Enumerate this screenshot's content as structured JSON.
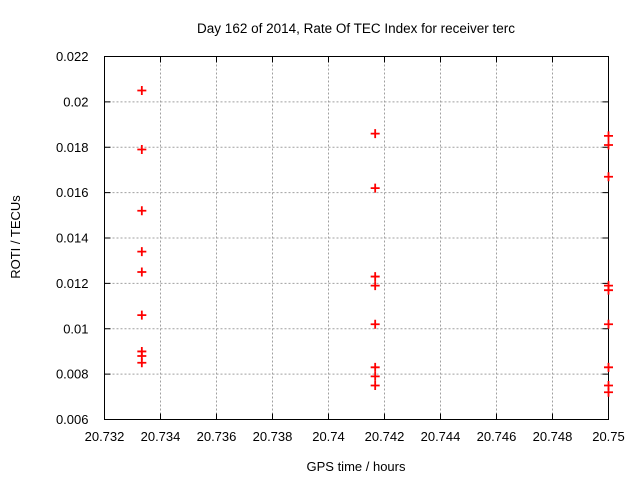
{
  "chart_data": {
    "type": "scatter",
    "title": "Day 162 of 2014, Rate Of TEC Index for receiver terc",
    "xlabel": "GPS time / hours",
    "ylabel": "ROTI / TECUs",
    "xlim": [
      20.732,
      20.75
    ],
    "ylim": [
      0.006,
      0.022
    ],
    "xticks": [
      20.732,
      20.734,
      20.736,
      20.738,
      20.74,
      20.742,
      20.744,
      20.746,
      20.748,
      20.75
    ],
    "xtick_labels": [
      "20.732",
      "20.734",
      "20.736",
      "20.738",
      "20.74",
      "20.742",
      "20.744",
      "20.746",
      "20.748",
      "20.75"
    ],
    "yticks": [
      0.006,
      0.008,
      0.01,
      0.012,
      0.014,
      0.016,
      0.018,
      0.02,
      0.022
    ],
    "ytick_labels": [
      "0.006",
      "0.008",
      "0.01",
      "0.012",
      "0.014",
      "0.016",
      "0.018",
      "0.02",
      "0.022"
    ],
    "grid": true,
    "grid_style": "dashed",
    "legend": "none",
    "marker": "plus",
    "colors": {
      "points": "#ff0000",
      "grid": "#a0a0a0",
      "axis": "#000000",
      "background": "#ffffff",
      "text": "#000000"
    },
    "series": [
      {
        "name": "ROTI",
        "points": [
          [
            20.733333,
            0.0205
          ],
          [
            20.733333,
            0.0179
          ],
          [
            20.733333,
            0.0152
          ],
          [
            20.733333,
            0.0134
          ],
          [
            20.733333,
            0.0125
          ],
          [
            20.733333,
            0.0106
          ],
          [
            20.733333,
            0.009
          ],
          [
            20.733333,
            0.0088
          ],
          [
            20.733333,
            0.0085
          ],
          [
            20.741667,
            0.0186
          ],
          [
            20.741667,
            0.0162
          ],
          [
            20.741667,
            0.0123
          ],
          [
            20.741667,
            0.0119
          ],
          [
            20.741667,
            0.0102
          ],
          [
            20.741667,
            0.0083
          ],
          [
            20.741667,
            0.0079
          ],
          [
            20.741667,
            0.0075
          ],
          [
            20.75,
            0.0185
          ],
          [
            20.75,
            0.0181
          ],
          [
            20.75,
            0.0167
          ],
          [
            20.75,
            0.0119
          ],
          [
            20.75,
            0.0117
          ],
          [
            20.75,
            0.0102
          ],
          [
            20.75,
            0.0083
          ],
          [
            20.75,
            0.0075
          ],
          [
            20.75,
            0.0072
          ]
        ]
      }
    ]
  }
}
